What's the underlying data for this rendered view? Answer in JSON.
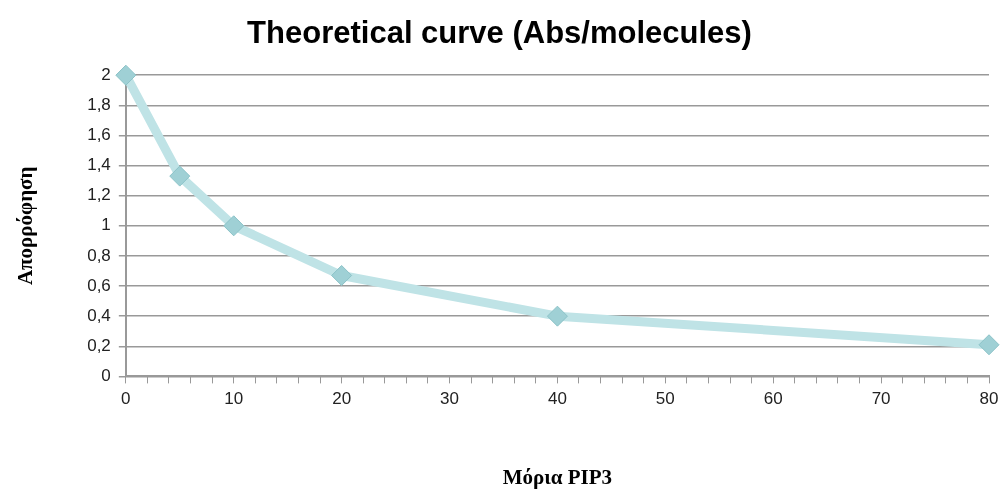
{
  "chart_data": {
    "type": "line",
    "title": "Theoretical curve (Abs/molecules)",
    "xlabel": "Μόρια PIP3",
    "ylabel": "Απορρόφηση",
    "x": [
      0,
      5,
      10,
      20,
      40,
      80
    ],
    "series": [
      {
        "color": "#bfe3e6",
        "values": [
          2,
          1.33,
          1,
          0.67,
          0.4,
          0.21
        ]
      }
    ],
    "xlim": [
      0,
      80
    ],
    "xticks": [
      0,
      {
        "value": 2,
        "label": null
      },
      {
        "value": 4,
        "label": null
      },
      {
        "value": 6,
        "label": null
      },
      {
        "value": 8,
        "label": null
      },
      10,
      {
        "value": 12,
        "label": null
      },
      {
        "value": 14,
        "label": null
      },
      {
        "value": 16,
        "label": null
      },
      {
        "value": 18,
        "label": null
      },
      20,
      {
        "value": 22,
        "label": null
      },
      {
        "value": 24,
        "label": null
      },
      {
        "value": 26,
        "label": null
      },
      {
        "value": 28,
        "label": null
      },
      30,
      {
        "value": 32,
        "label": null
      },
      {
        "value": 34,
        "label": null
      },
      {
        "value": 36,
        "label": null
      },
      {
        "value": 38,
        "label": null
      },
      40,
      {
        "value": 42,
        "label": null
      },
      {
        "value": 44,
        "label": null
      },
      {
        "value": 46,
        "label": null
      },
      {
        "value": 48,
        "label": null
      },
      50,
      {
        "value": 52,
        "label": null
      },
      {
        "value": 54,
        "label": null
      },
      {
        "value": 56,
        "label": null
      },
      {
        "value": 58,
        "label": null
      },
      60,
      {
        "value": 62,
        "label": null
      },
      {
        "value": 64,
        "label": null
      },
      {
        "value": 66,
        "label": null
      },
      {
        "value": 68,
        "label": null
      },
      70,
      {
        "value": 72,
        "label": null
      },
      {
        "value": 74,
        "label": null
      },
      {
        "value": 76,
        "label": null
      },
      {
        "value": 78,
        "label": null
      },
      80
    ],
    "ylim": [
      0,
      2
    ],
    "yticks": [
      0,
      {
        "value": 0.2,
        "label": "0,2"
      },
      {
        "value": 0.4,
        "label": "0,4"
      },
      {
        "value": 0.6,
        "label": "0,6"
      },
      {
        "value": 0.8,
        "label": "0,8"
      },
      1,
      {
        "value": 1.2,
        "label": "1,2"
      },
      {
        "value": 1.4,
        "label": "1,4"
      },
      {
        "value": 1.6,
        "label": "1,6"
      },
      {
        "value": 1.8,
        "label": "1,8"
      },
      2
    ],
    "grid": "y",
    "marker": "diamond",
    "line_style": "solid",
    "legend": false
  }
}
